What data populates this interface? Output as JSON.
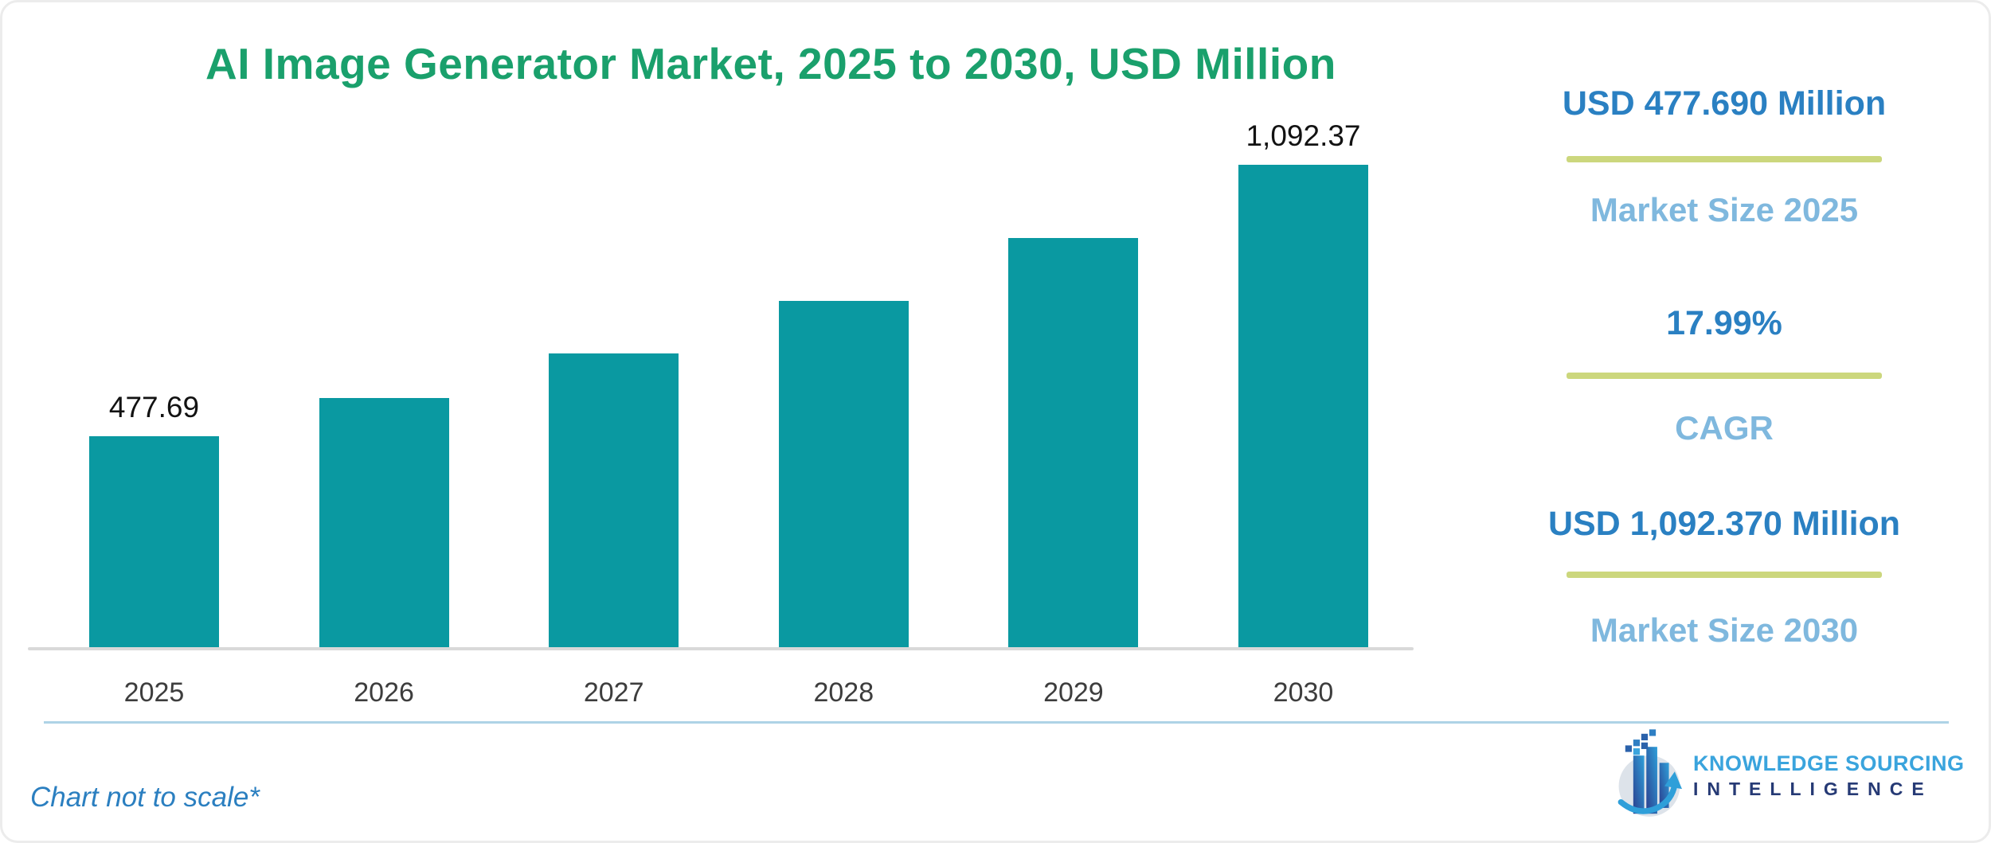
{
  "title": "AI Image Generator Market, 2025 to 2030, USD Million",
  "chart_data": {
    "type": "bar",
    "title": "AI Image Generator Market, 2025 to 2030, USD Million",
    "categories": [
      "2025",
      "2026",
      "2027",
      "2028",
      "2029",
      "2030"
    ],
    "values": [
      477.69,
      563.6,
      665.0,
      784.7,
      925.9,
      1092.37
    ],
    "value_labels": {
      "2025": "477.69",
      "2030": "1,092.37"
    },
    "xlabel": "",
    "ylabel": "USD Million",
    "ylim": [
      0,
      1092.37
    ],
    "grid": false,
    "legend": false
  },
  "stats": [
    {
      "value": "USD 477.690 Million",
      "label": "Market Size 2025"
    },
    {
      "value": "17.99%",
      "label": "CAGR"
    },
    {
      "value": "USD 1,092.370 Million",
      "label": "Market Size 2030"
    }
  ],
  "footnote": "Chart not to scale*",
  "logo": {
    "line1": "KNOWLEDGE SOURCING",
    "line2": "INTELLIGENCE"
  },
  "colors": {
    "title_green": "#1aa06c",
    "bar_teal": "#0a99a1",
    "value_label": "#121212",
    "axis_line": "#d9d9d9",
    "tick_label": "#3d3d3d",
    "stat_value_blue": "#2a80c2",
    "stat_label_blue": "#7fb8de",
    "divider_olive": "#ccd77d",
    "rule_blue": "#aed3e6",
    "footnote_blue": "#2b7fc0",
    "logo_light_blue": "#3aa4dd",
    "logo_navy": "#263a75"
  }
}
